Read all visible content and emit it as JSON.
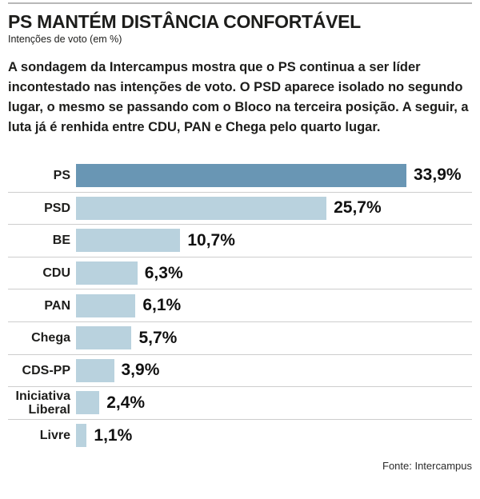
{
  "page": {
    "title": "PS MANTÉM DISTÂNCIA CONFORTÁVEL",
    "subtitle": "Intenções de voto (em %)",
    "paragraph": "A sondagem da Intercampus mostra que o PS continua a ser líder incontestado nas intenções de voto. O PSD aparece isolado no segundo lugar, o mesmo se passando com o Bloco na terceira posição. A seguir, a luta já é renhida entre CDU, PAN e Chega pelo quarto lugar.",
    "source": "Fonte: Intercampus"
  },
  "colors": {
    "highlight_bar": "#6996b4",
    "bar": "#b9d2de",
    "separator": "#cdcdcd",
    "top_rule": "#b7b7b7",
    "text": "#1d1d1b"
  },
  "chart_data": {
    "type": "bar",
    "orientation": "horizontal",
    "title": "PS MANTÉM DISTÂNCIA CONFORTÁVEL",
    "subtitle": "Intenções de voto (em %)",
    "categories": [
      "PS",
      "PSD",
      "BE",
      "CDU",
      "PAN",
      "Chega",
      "CDS-PP",
      "Iniciativa Liberal",
      "Livre"
    ],
    "values": [
      33.9,
      25.7,
      10.7,
      6.3,
      6.1,
      5.7,
      3.9,
      2.4,
      1.1
    ],
    "value_labels": [
      "33,9%",
      "25,7%",
      "10,7%",
      "6,3%",
      "6,1%",
      "5,7%",
      "3,9%",
      "2,4%",
      "1,1%"
    ],
    "unit": "%",
    "xlabel": "",
    "ylabel": "",
    "xlim": [
      0,
      34
    ],
    "highlight_index": 0,
    "grid": false,
    "legend": false,
    "source": "Fonte: Intercampus"
  }
}
